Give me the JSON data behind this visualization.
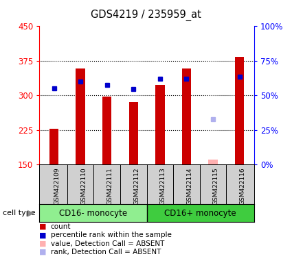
{
  "title": "GDS4219 / 235959_at",
  "samples": [
    "GSM422109",
    "GSM422110",
    "GSM422111",
    "GSM422112",
    "GSM422113",
    "GSM422114",
    "GSM422115",
    "GSM422116"
  ],
  "counts": [
    228,
    358,
    297,
    285,
    322,
    358,
    null,
    383
  ],
  "counts_absent": [
    null,
    null,
    null,
    null,
    null,
    null,
    160,
    null
  ],
  "percentile_ranks": [
    315,
    330,
    322,
    313,
    336,
    336,
    null,
    340
  ],
  "percentile_ranks_absent": [
    null,
    null,
    null,
    null,
    null,
    null,
    248,
    null
  ],
  "ylim_left": [
    150,
    450
  ],
  "yticks_left": [
    150,
    225,
    300,
    375,
    450
  ],
  "ylim_right": [
    0,
    100
  ],
  "yticks_right": [
    0,
    25,
    50,
    75,
    100
  ],
  "ytick_labels_right": [
    "0%",
    "25%",
    "50%",
    "75%",
    "100%"
  ],
  "bar_color": "#CC0000",
  "bar_color_absent": "#FFB0B0",
  "dot_color": "#0000CC",
  "dot_color_absent": "#B0B0EE",
  "bar_width": 0.35,
  "ybase": 150,
  "label_area_color": "#D0D0D0",
  "group1_color": "#90EE90",
  "group2_color": "#3FCC3F",
  "gridline_yticks": [
    225,
    300,
    375
  ]
}
